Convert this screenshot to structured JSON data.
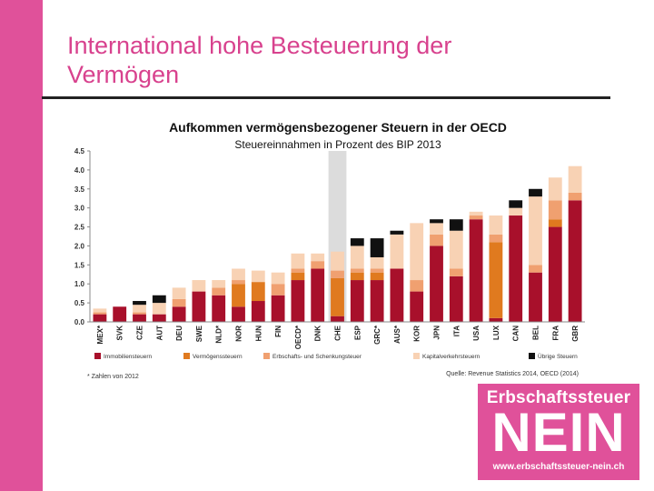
{
  "slide": {
    "title_line1": "International hohe Besteuerung der",
    "title_line2": "Vermögen"
  },
  "chart_data": {
    "type": "bar",
    "stacked": true,
    "title": "Aufkommen vermögensbezogener Steuern in der OECD",
    "subtitle": "Steuereinnahmen in Prozent des BIP 2013",
    "xlabel": "",
    "ylabel": "",
    "ylim": [
      0,
      4.5
    ],
    "yticks": [
      "0.0",
      "0.5",
      "1.0",
      "1.5",
      "2.0",
      "2.5",
      "3.0",
      "3.5",
      "4.0",
      "4.5"
    ],
    "grid": false,
    "legend_position": "bottom",
    "highlight_category": "CHE",
    "categories": [
      "MEX*",
      "SVK",
      "CZE",
      "AUT",
      "DEU",
      "SWE",
      "NLD*",
      "NOR",
      "HUN",
      "FIN",
      "OECD*",
      "DNK",
      "CHE",
      "ESP",
      "GRC*",
      "AUS*",
      "KOR",
      "JPN",
      "ITA",
      "USA",
      "LUX",
      "CAN",
      "BEL",
      "FRA",
      "GBR"
    ],
    "series": [
      {
        "name": "Immobiliensteuern",
        "color": "#a8102b",
        "values": [
          0.2,
          0.4,
          0.2,
          0.2,
          0.4,
          0.8,
          0.7,
          0.4,
          0.55,
          0.7,
          1.1,
          1.4,
          0.15,
          1.1,
          1.1,
          1.4,
          0.8,
          2.0,
          1.2,
          2.7,
          0.1,
          2.8,
          1.3,
          2.5,
          3.2
        ]
      },
      {
        "name": "Vermögenssteuern",
        "color": "#e07a1f",
        "values": [
          0,
          0,
          0,
          0,
          0,
          0,
          0,
          0.6,
          0.5,
          0,
          0.2,
          0,
          1.0,
          0.2,
          0.2,
          0,
          0,
          0,
          0,
          0,
          2.0,
          0,
          0,
          0.2,
          0
        ]
      },
      {
        "name": "Erbschafts- und Schenkungsteuer",
        "color": "#f0a070",
        "values": [
          0.05,
          0,
          0.05,
          0,
          0.2,
          0,
          0.2,
          0.1,
          0,
          0.3,
          0.1,
          0.2,
          0.2,
          0.1,
          0.1,
          0,
          0.3,
          0.3,
          0.2,
          0.1,
          0.2,
          0,
          0.2,
          0.5,
          0.2
        ]
      },
      {
        "name": "Kapitalverkehrsteuern",
        "color": "#f8d2b4",
        "values": [
          0.1,
          0,
          0.2,
          0.3,
          0.3,
          0.3,
          0.2,
          0.3,
          0.3,
          0.3,
          0.4,
          0.2,
          0.5,
          0.6,
          0.3,
          0.9,
          1.5,
          0.3,
          1.0,
          0.1,
          0.5,
          0.2,
          1.8,
          0.6,
          0.7
        ]
      },
      {
        "name": "Übrige Steuern",
        "color": "#111111",
        "values": [
          0,
          0,
          0.1,
          0.2,
          0,
          0,
          0,
          0,
          0,
          0,
          0,
          0,
          0,
          0.2,
          0.5,
          0.1,
          0,
          0.1,
          0.3,
          0,
          0,
          0.2,
          0.2,
          0,
          0
        ]
      }
    ],
    "footnote": "* Zahlen von 2012",
    "source": "Quelle: Revenue Statistics 2014, OECD (2014)"
  },
  "logo": {
    "top_text": "Erbschaftssteuer",
    "big_text": "NEIN",
    "url": "www.erbschaftssteuer-nein.ch",
    "color": "#e0519a"
  }
}
